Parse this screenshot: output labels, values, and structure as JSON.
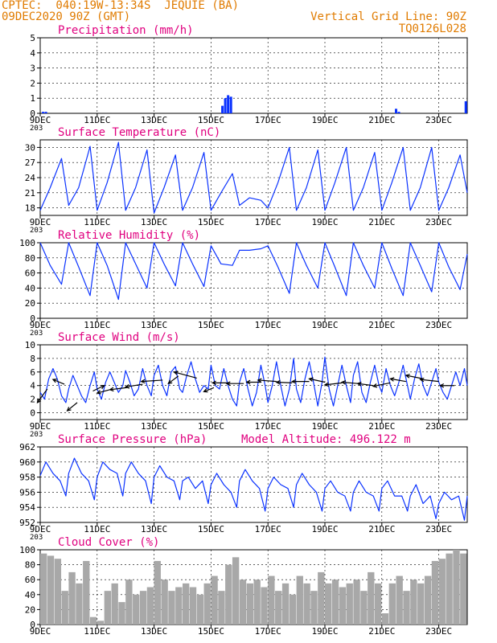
{
  "header": {
    "line1_left": "CPTEC:  040:19W-13:34S  JEQUIE (BA)",
    "line2_left": "09DEC2020 90Z (GMT)",
    "line1_right": "Vertical Grid Line: 90Z",
    "line2_right": "TQ0126L028",
    "model_altitude": "Model Altitude: 496.122 m",
    "colors": {
      "header": "#e07b00",
      "title": "#e0007f",
      "series": "#0a32ff",
      "bars": "#a8a8a8",
      "axis": "#000000"
    }
  },
  "x_axis": {
    "ticks": [
      "9DEC",
      "11DEC",
      "13DEC",
      "15DEC",
      "17DEC",
      "19DEC",
      "21DEC",
      "23DEC"
    ],
    "tick_days": [
      0,
      2,
      4,
      6,
      8,
      10,
      12,
      14
    ],
    "range_days": [
      0,
      15
    ],
    "under_tick_label": "203"
  },
  "chart_data": [
    {
      "type": "bar",
      "title": "Precipitation (mm/h)",
      "ylim": [
        0,
        5
      ],
      "yticks": [
        "0",
        "1",
        "2",
        "3",
        "4",
        "5"
      ],
      "grid": true,
      "x": [
        0.1,
        0.2,
        6.4,
        6.5,
        6.6,
        6.7,
        12.5,
        12.6,
        14.95
      ],
      "values": [
        0.1,
        0.1,
        0.5,
        1.0,
        1.2,
        1.1,
        0.3,
        0.1,
        0.8
      ]
    },
    {
      "type": "line",
      "title": "Surface Temperature (nC)",
      "ylim": [
        16.5,
        31.5
      ],
      "yticks": [
        "18",
        "21",
        "24",
        "27",
        "30"
      ],
      "grid": true,
      "x": [
        0,
        0.35,
        0.75,
        1.0,
        1.35,
        1.75,
        2.0,
        2.35,
        2.75,
        3.0,
        3.35,
        3.75,
        4.0,
        4.35,
        4.75,
        5.0,
        5.35,
        5.75,
        6.0,
        6.35,
        6.75,
        7.0,
        7.35,
        7.75,
        8.0,
        8.35,
        8.75,
        9.0,
        9.35,
        9.75,
        10.0,
        10.35,
        10.75,
        11.0,
        11.35,
        11.75,
        12.0,
        12.35,
        12.75,
        13.0,
        13.35,
        13.75,
        14.0,
        14.35,
        14.75,
        15.0
      ],
      "values": [
        17.5,
        22.0,
        27.8,
        18.5,
        22.0,
        30.2,
        17.5,
        23.0,
        31.0,
        17.5,
        22.0,
        29.5,
        17.0,
        22.0,
        28.5,
        17.5,
        22.0,
        29.0,
        17.5,
        21.0,
        24.8,
        18.5,
        20.0,
        19.5,
        18.0,
        23.0,
        30.0,
        17.5,
        22.0,
        29.5,
        17.5,
        23.0,
        30.0,
        17.5,
        22.0,
        29.0,
        17.5,
        23.0,
        30.0,
        17.5,
        22.0,
        30.0,
        17.5,
        22.0,
        28.5,
        21.0
      ]
    },
    {
      "type": "line",
      "title": "Relative Humidity (%)",
      "ylim": [
        0,
        100
      ],
      "yticks": [
        "0",
        "20",
        "40",
        "60",
        "80",
        "100"
      ],
      "grid": true,
      "x": [
        0,
        0.35,
        0.75,
        1.0,
        1.35,
        1.75,
        2.0,
        2.35,
        2.75,
        3.0,
        3.35,
        3.75,
        4.0,
        4.35,
        4.75,
        5.0,
        5.35,
        5.75,
        6.0,
        6.35,
        6.75,
        7.0,
        7.35,
        7.75,
        8.0,
        8.35,
        8.75,
        9.0,
        9.35,
        9.75,
        10.0,
        10.35,
        10.75,
        11.0,
        11.35,
        11.75,
        12.0,
        12.35,
        12.75,
        13.0,
        13.35,
        13.75,
        14.0,
        14.35,
        14.75,
        15.0
      ],
      "values": [
        100,
        70,
        45,
        100,
        68,
        30,
        100,
        70,
        25,
        100,
        72,
        40,
        100,
        72,
        43,
        100,
        72,
        42,
        96,
        72,
        70,
        90,
        90,
        92,
        96,
        68,
        33,
        100,
        70,
        40,
        100,
        68,
        30,
        100,
        70,
        40,
        100,
        66,
        30,
        100,
        70,
        35,
        100,
        68,
        38,
        85
      ]
    },
    {
      "type": "line",
      "title": "Surface Wind (m/s)",
      "ylim": [
        -1,
        10
      ],
      "yticks": [
        "0",
        "2",
        "4",
        "6",
        "8",
        "10"
      ],
      "grid": true,
      "x": [
        0,
        0.15,
        0.3,
        0.45,
        0.6,
        0.75,
        0.9,
        1.0,
        1.15,
        1.3,
        1.45,
        1.6,
        1.75,
        1.9,
        2.0,
        2.15,
        2.3,
        2.45,
        2.6,
        2.75,
        2.9,
        3.0,
        3.15,
        3.3,
        3.45,
        3.6,
        3.75,
        3.9,
        4.0,
        4.15,
        4.3,
        4.45,
        4.6,
        4.75,
        4.9,
        5.0,
        5.15,
        5.3,
        5.45,
        5.6,
        5.75,
        5.9,
        6.0,
        6.15,
        6.3,
        6.45,
        6.6,
        6.75,
        6.9,
        7.0,
        7.15,
        7.3,
        7.45,
        7.6,
        7.75,
        7.9,
        8.0,
        8.15,
        8.3,
        8.45,
        8.6,
        8.75,
        8.9,
        9.0,
        9.15,
        9.3,
        9.45,
        9.6,
        9.75,
        9.9,
        10.0,
        10.15,
        10.3,
        10.45,
        10.6,
        10.75,
        10.9,
        11.0,
        11.15,
        11.3,
        11.45,
        11.6,
        11.75,
        11.9,
        12.0,
        12.15,
        12.3,
        12.45,
        12.6,
        12.75,
        12.9,
        13.0,
        13.15,
        13.3,
        13.45,
        13.6,
        13.75,
        13.9,
        14.0,
        14.15,
        14.3,
        14.45,
        14.6,
        14.75,
        14.9,
        15.0
      ],
      "values": [
        3.0,
        2.0,
        5.0,
        6.5,
        5.0,
        2.5,
        1.5,
        3.5,
        5.5,
        4.0,
        2.5,
        1.5,
        4.0,
        6.0,
        3.5,
        2.0,
        4.5,
        6.0,
        4.5,
        3.0,
        4.0,
        6.2,
        4.5,
        2.5,
        3.5,
        6.5,
        4.0,
        2.5,
        5.5,
        7.0,
        4.0,
        2.5,
        6.0,
        6.8,
        3.5,
        3.0,
        5.5,
        7.5,
        5.0,
        3.0,
        4.0,
        3.5,
        7.0,
        4.0,
        3.5,
        6.5,
        4.0,
        2.0,
        1.0,
        4.5,
        6.5,
        3.5,
        1.0,
        3.0,
        7.0,
        4.0,
        1.5,
        4.0,
        7.5,
        4.0,
        1.0,
        3.5,
        8.0,
        3.5,
        1.5,
        5.0,
        7.5,
        4.5,
        1.0,
        4.5,
        8.2,
        3.5,
        1.0,
        4.0,
        7.0,
        4.0,
        1.5,
        5.5,
        7.5,
        3.0,
        1.5,
        4.5,
        7.0,
        4.0,
        3.0,
        6.5,
        4.0,
        2.5,
        4.5,
        7.0,
        4.0,
        2.0,
        5.0,
        7.2,
        4.0,
        2.5,
        4.5,
        6.5,
        4.5,
        3.0,
        2.0,
        4.0,
        6.0,
        4.0,
        6.5,
        4.0
      ],
      "vectors": [
        {
          "x": 0.25,
          "y": 3.5,
          "dx": -0.35,
          "dy": -2.0
        },
        {
          "x": 0.85,
          "y": 4.2,
          "dx": -0.4,
          "dy": 0.7
        },
        {
          "x": 1.3,
          "y": 1.5,
          "dx": -0.35,
          "dy": -1.2
        },
        {
          "x": 1.85,
          "y": 3.2,
          "dx": 0.4,
          "dy": 0.8
        },
        {
          "x": 2.45,
          "y": 3.4,
          "dx": -0.45,
          "dy": -0.5
        },
        {
          "x": 3.05,
          "y": 3.7,
          "dx": -0.6,
          "dy": -0.3
        },
        {
          "x": 3.6,
          "y": 4.2,
          "dx": -0.6,
          "dy": -0.4
        },
        {
          "x": 4.3,
          "y": 4.8,
          "dx": -0.75,
          "dy": -0.2
        },
        {
          "x": 4.85,
          "y": 5.4,
          "dx": -0.35,
          "dy": -1.1
        },
        {
          "x": 5.5,
          "y": 5.1,
          "dx": -0.8,
          "dy": 0.9
        },
        {
          "x": 6.1,
          "y": 3.7,
          "dx": -0.35,
          "dy": -0.6
        },
        {
          "x": 6.65,
          "y": 4.4,
          "dx": -0.6,
          "dy": 0.0
        },
        {
          "x": 7.15,
          "y": 4.3,
          "dx": -0.6,
          "dy": 0.0
        },
        {
          "x": 7.75,
          "y": 4.5,
          "dx": -0.5,
          "dy": 0.0
        },
        {
          "x": 8.3,
          "y": 4.6,
          "dx": -0.65,
          "dy": 0.2
        },
        {
          "x": 8.85,
          "y": 4.4,
          "dx": -0.55,
          "dy": 0.1
        },
        {
          "x": 9.45,
          "y": 4.6,
          "dx": -0.6,
          "dy": 0.0
        },
        {
          "x": 10.0,
          "y": 4.5,
          "dx": -0.55,
          "dy": 0.5
        },
        {
          "x": 10.6,
          "y": 4.4,
          "dx": -0.6,
          "dy": -0.3
        },
        {
          "x": 11.15,
          "y": 4.3,
          "dx": -0.55,
          "dy": 0.2
        },
        {
          "x": 11.7,
          "y": 4.0,
          "dx": -0.55,
          "dy": 0.3
        },
        {
          "x": 12.3,
          "y": 4.4,
          "dx": -0.6,
          "dy": -0.5
        },
        {
          "x": 12.85,
          "y": 4.6,
          "dx": -0.55,
          "dy": 0.4
        },
        {
          "x": 13.45,
          "y": 5.0,
          "dx": -0.6,
          "dy": 0.5
        },
        {
          "x": 14.0,
          "y": 4.6,
          "dx": -0.65,
          "dy": 0.3
        },
        {
          "x": 14.55,
          "y": 4.0,
          "dx": -0.5,
          "dy": 0.0
        }
      ]
    },
    {
      "type": "line",
      "title": "Surface Pressure (hPa)",
      "ylim": [
        952,
        962
      ],
      "yticks": [
        "952",
        "954",
        "956",
        "958",
        "960",
        "962"
      ],
      "grid": true,
      "x": [
        0,
        0.2,
        0.45,
        0.7,
        0.9,
        1.0,
        1.2,
        1.45,
        1.7,
        1.9,
        2.0,
        2.2,
        2.45,
        2.7,
        2.9,
        3.0,
        3.2,
        3.45,
        3.7,
        3.9,
        4.0,
        4.2,
        4.45,
        4.7,
        4.9,
        5.0,
        5.2,
        5.45,
        5.7,
        5.9,
        6.0,
        6.2,
        6.45,
        6.7,
        6.9,
        7.0,
        7.2,
        7.45,
        7.7,
        7.9,
        8.0,
        8.2,
        8.45,
        8.7,
        8.9,
        9.0,
        9.2,
        9.45,
        9.7,
        9.9,
        10.0,
        10.2,
        10.45,
        10.7,
        10.9,
        11.0,
        11.2,
        11.45,
        11.7,
        11.9,
        12.0,
        12.2,
        12.45,
        12.7,
        12.9,
        13.0,
        13.2,
        13.45,
        13.7,
        13.9,
        14.0,
        14.2,
        14.45,
        14.7,
        14.9,
        15.0
      ],
      "values": [
        958.2,
        960.0,
        958.5,
        957.5,
        955.5,
        958.5,
        960.5,
        958.5,
        957.5,
        955.0,
        958.0,
        960.0,
        959.0,
        958.5,
        955.5,
        958.5,
        960.0,
        958.5,
        957.5,
        954.5,
        958.0,
        959.5,
        958.0,
        957.5,
        955.0,
        957.5,
        958.0,
        956.5,
        957.5,
        954.5,
        957.0,
        958.5,
        957.0,
        956.0,
        954.0,
        957.5,
        959.0,
        957.5,
        956.5,
        953.5,
        956.5,
        958.0,
        957.0,
        956.5,
        954.0,
        957.0,
        958.5,
        957.0,
        956.0,
        953.5,
        956.5,
        957.5,
        956.0,
        955.5,
        953.5,
        956.0,
        957.5,
        956.0,
        955.5,
        953.5,
        956.5,
        957.5,
        955.5,
        955.5,
        953.5,
        955.5,
        957.0,
        954.5,
        955.5,
        952.5,
        954.5,
        956.0,
        955.0,
        955.5,
        952.3,
        955.5
      ]
    },
    {
      "type": "bar",
      "title": "Cloud Cover (%)",
      "ylim": [
        0,
        100
      ],
      "yticks": [
        "0",
        "20",
        "40",
        "60",
        "80",
        "100"
      ],
      "grid": true,
      "x": [
        0,
        0.25,
        0.5,
        0.75,
        1.0,
        1.25,
        1.5,
        1.75,
        2.0,
        2.25,
        2.5,
        2.75,
        3.0,
        3.25,
        3.5,
        3.75,
        4.0,
        4.25,
        4.5,
        4.75,
        5.0,
        5.25,
        5.5,
        5.75,
        6.0,
        6.25,
        6.5,
        6.75,
        7.0,
        7.25,
        7.5,
        7.75,
        8.0,
        8.25,
        8.5,
        8.75,
        9.0,
        9.25,
        9.5,
        9.75,
        10.0,
        10.25,
        10.5,
        10.75,
        11.0,
        11.25,
        11.5,
        11.75,
        12.0,
        12.25,
        12.5,
        12.75,
        13.0,
        13.25,
        13.5,
        13.75,
        14.0,
        14.25,
        14.5,
        14.75
      ],
      "values": [
        95,
        92,
        88,
        45,
        70,
        55,
        85,
        10,
        5,
        45,
        55,
        30,
        60,
        40,
        45,
        50,
        85,
        60,
        45,
        50,
        55,
        50,
        40,
        55,
        65,
        45,
        80,
        90,
        60,
        55,
        60,
        50,
        65,
        45,
        55,
        40,
        65,
        55,
        45,
        70,
        55,
        60,
        50,
        55,
        60,
        45,
        70,
        55,
        15,
        55,
        65,
        45,
        60,
        55,
        65,
        85,
        88,
        95,
        100,
        95
      ]
    }
  ]
}
